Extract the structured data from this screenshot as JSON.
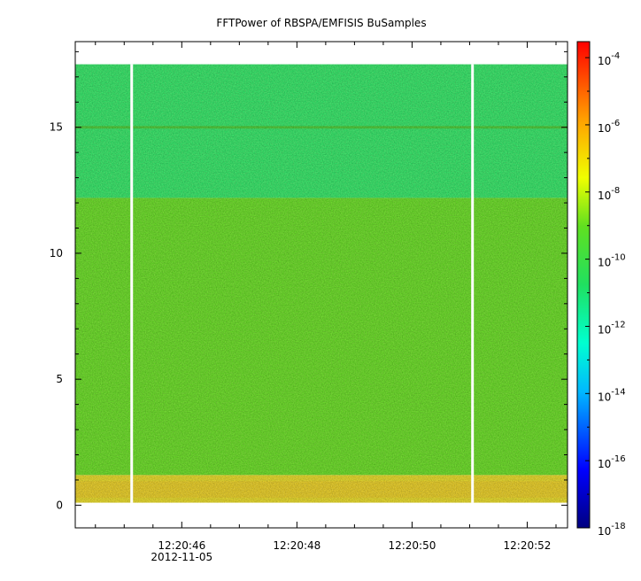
{
  "chart_data": {
    "type": "heatmap",
    "title": "FFTPower of RBSPA/EMFISIS  BuSamples",
    "xlabel": "",
    "ylabel": "",
    "x_ticks": [
      {
        "time": "12:20:46",
        "sub": "2012-11-05"
      },
      {
        "time": "12:20:48",
        "sub": ""
      },
      {
        "time": "12:20:50",
        "sub": ""
      },
      {
        "time": "12:20:52",
        "sub": ""
      }
    ],
    "x_start": "12:20:44.1",
    "x_end": "12:20:52.7",
    "xlim_seconds_in_minute": [
      44.15,
      52.7
    ],
    "y_ticks": [
      "0",
      "5",
      "10",
      "15"
    ],
    "y_tick_values": [
      0,
      5,
      10,
      15
    ],
    "ylim": [
      -0.9,
      18.4
    ],
    "data_top_y": 17.5,
    "gaps_x_seconds": [
      45.13,
      51.05
    ],
    "colorbar": {
      "scale": "log",
      "range": [
        1e-18,
        0.0003
      ],
      "tick_base": "10",
      "tick_exponents": [
        "-4",
        "-6",
        "-8",
        "-10",
        "-12",
        "-14",
        "-16",
        "-18"
      ]
    },
    "bands": [
      {
        "y_from": 0.1,
        "y_to": 1.2,
        "level": "~1e-8 to 1e-9",
        "color": "#f0e020"
      },
      {
        "y_from": 1.2,
        "y_to": 12.2,
        "level": "~1e-10 to 1e-11",
        "color": "#5fe41e"
      },
      {
        "y_from": 12.2,
        "y_to": 17.5,
        "level": "~1e-12",
        "color": "#22ee6a"
      },
      {
        "y_from": 14.95,
        "y_to": 15.05,
        "level": "line",
        "color": "#3bcc30"
      }
    ]
  }
}
